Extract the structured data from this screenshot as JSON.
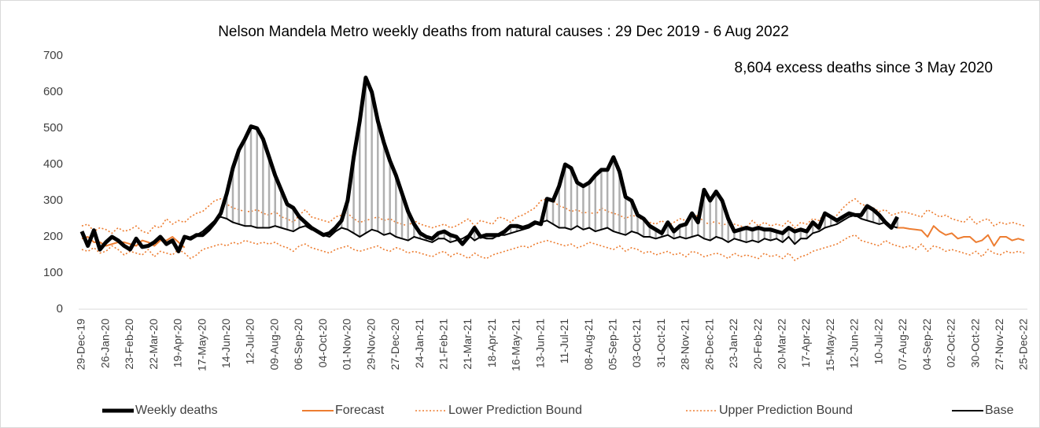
{
  "chart_data": {
    "type": "line",
    "title": "Nelson Mandela Metro weekly deaths from natural causes : 29 Dec 2019 - 6 Aug 2022",
    "annotation": "8,604 excess deaths since 3 May 2020",
    "categories": [
      "29-Dec-19",
      null,
      null,
      null,
      "26-Jan-20",
      null,
      null,
      null,
      "23-Feb-20",
      null,
      null,
      null,
      "22-Mar-20",
      null,
      null,
      null,
      "19-Apr-20",
      null,
      null,
      null,
      "17-May-20",
      null,
      null,
      null,
      "14-Jun-20",
      null,
      null,
      null,
      "12-Jul-20",
      null,
      null,
      null,
      "09-Aug-20",
      null,
      null,
      null,
      "06-Sep-20",
      null,
      null,
      null,
      "04-Oct-20",
      null,
      null,
      null,
      "01-Nov-20",
      null,
      null,
      null,
      "29-Nov-20",
      null,
      null,
      null,
      "27-Dec-20",
      null,
      null,
      null,
      "24-Jan-21",
      null,
      null,
      null,
      "21-Feb-21",
      null,
      null,
      null,
      "21-Mar-21",
      null,
      null,
      null,
      "18-Apr-21",
      null,
      null,
      null,
      "16-May-21",
      null,
      null,
      null,
      "13-Jun-21",
      null,
      null,
      null,
      "11-Jul-21",
      null,
      null,
      null,
      "08-Aug-21",
      null,
      null,
      null,
      "05-Sep-21",
      null,
      null,
      null,
      "03-Oct-21",
      null,
      null,
      null,
      "31-Oct-21",
      null,
      null,
      null,
      "28-Nov-21",
      null,
      null,
      null,
      "26-Dec-21",
      null,
      null,
      null,
      "23-Jan-22",
      null,
      null,
      null,
      "20-Feb-22",
      null,
      null,
      null,
      "20-Mar-22",
      null,
      null,
      null,
      "17-Apr-22",
      null,
      null,
      null,
      "15-May-22",
      null,
      null,
      null,
      "12-Jun-22",
      null,
      null,
      null,
      "10-Jul-22",
      null,
      null,
      null,
      "07-Aug-22",
      null,
      null,
      null,
      "04-Sep-22",
      null,
      null,
      null,
      "02-Oct-22",
      null,
      null,
      null,
      "30-Oct-22",
      null,
      null,
      null,
      "27-Nov-22",
      null,
      null,
      null,
      "25-Dec-22"
    ],
    "series": [
      {
        "name": "Weekly deaths",
        "color": "#000000",
        "line_style": "thick",
        "values": [
          215,
          175,
          218,
          165,
          185,
          200,
          190,
          175,
          165,
          195,
          172,
          175,
          185,
          200,
          180,
          190,
          160,
          200,
          195,
          205,
          205,
          220,
          240,
          265,
          320,
          390,
          440,
          470,
          505,
          500,
          470,
          420,
          370,
          330,
          290,
          280,
          255,
          240,
          225,
          215,
          205,
          210,
          225,
          245,
          300,
          420,
          520,
          640,
          600,
          520,
          460,
          410,
          370,
          320,
          270,
          235,
          210,
          200,
          195,
          210,
          215,
          205,
          200,
          180,
          200,
          225,
          200,
          205,
          205,
          205,
          215,
          230,
          230,
          225,
          230,
          240,
          235,
          305,
          300,
          340,
          400,
          390,
          350,
          340,
          350,
          370,
          385,
          385,
          420,
          380,
          310,
          300,
          260,
          250,
          230,
          220,
          210,
          240,
          215,
          230,
          235,
          265,
          240,
          330,
          300,
          325,
          300,
          250,
          215,
          220,
          225,
          220,
          225,
          220,
          220,
          215,
          210,
          225,
          215,
          220,
          215,
          240,
          225,
          265,
          255,
          245,
          255,
          265,
          260,
          260,
          285,
          275,
          260,
          240,
          225,
          255,
          null,
          null,
          null,
          null,
          null,
          null,
          null,
          null,
          null,
          null,
          null,
          null,
          null,
          null,
          null,
          null,
          null,
          null,
          null,
          null,
          null
        ]
      },
      {
        "name": "Forecast",
        "color": "#ED7D31",
        "line_style": "solid",
        "values": [
          195,
          200,
          185,
          185,
          175,
          180,
          185,
          185,
          180,
          175,
          190,
          185,
          175,
          190,
          190,
          200,
          185,
          170,
          null,
          null,
          null,
          null,
          null,
          null,
          null,
          null,
          null,
          null,
          null,
          null,
          null,
          null,
          null,
          null,
          null,
          null,
          null,
          null,
          null,
          null,
          null,
          null,
          null,
          null,
          null,
          null,
          null,
          null,
          null,
          null,
          null,
          null,
          null,
          null,
          null,
          null,
          null,
          null,
          null,
          null,
          null,
          null,
          null,
          null,
          null,
          null,
          null,
          null,
          null,
          null,
          null,
          null,
          null,
          null,
          null,
          null,
          null,
          null,
          null,
          null,
          null,
          null,
          null,
          null,
          null,
          null,
          null,
          null,
          null,
          null,
          null,
          null,
          null,
          null,
          null,
          null,
          null,
          null,
          null,
          null,
          null,
          null,
          null,
          null,
          null,
          null,
          null,
          null,
          null,
          null,
          null,
          null,
          null,
          null,
          null,
          null,
          null,
          null,
          null,
          null,
          null,
          null,
          null,
          null,
          null,
          null,
          null,
          null,
          null,
          null,
          null,
          null,
          null,
          null,
          null,
          225,
          225,
          222,
          220,
          218,
          200,
          230,
          215,
          205,
          210,
          195,
          200,
          200,
          185,
          190,
          205,
          175,
          200,
          200,
          190,
          195,
          190
        ]
      },
      {
        "name": "Lower Prediction Bound",
        "color": "#ED7D31",
        "line_style": "dotted",
        "values": [
          165,
          160,
          170,
          155,
          160,
          175,
          165,
          150,
          160,
          155,
          150,
          165,
          145,
          160,
          155,
          150,
          165,
          155,
          140,
          150,
          165,
          170,
          175,
          180,
          175,
          185,
          180,
          190,
          185,
          180,
          185,
          180,
          185,
          175,
          170,
          160,
          175,
          180,
          170,
          165,
          160,
          155,
          165,
          170,
          175,
          165,
          160,
          165,
          170,
          175,
          165,
          160,
          170,
          165,
          155,
          160,
          155,
          150,
          145,
          155,
          160,
          145,
          155,
          150,
          140,
          155,
          145,
          140,
          150,
          155,
          160,
          165,
          170,
          175,
          170,
          180,
          185,
          190,
          185,
          180,
          175,
          180,
          170,
          175,
          185,
          180,
          175,
          170,
          165,
          175,
          160,
          170,
          165,
          155,
          160,
          150,
          155,
          160,
          150,
          155,
          145,
          160,
          155,
          145,
          150,
          155,
          150,
          140,
          155,
          145,
          150,
          145,
          140,
          155,
          145,
          150,
          140,
          155,
          135,
          145,
          150,
          160,
          165,
          170,
          175,
          180,
          190,
          200,
          205,
          190,
          185,
          180,
          175,
          190,
          180,
          175,
          170,
          175,
          165,
          180,
          160,
          175,
          170,
          160,
          165,
          160,
          155,
          150,
          160,
          145,
          165,
          155,
          150,
          160,
          155,
          160,
          155
        ]
      },
      {
        "name": "Upper Prediction Bound",
        "color": "#ED7D31",
        "line_style": "dotted",
        "values": [
          230,
          235,
          215,
          225,
          220,
          210,
          225,
          215,
          220,
          230,
          215,
          210,
          230,
          225,
          250,
          235,
          245,
          240,
          255,
          265,
          270,
          285,
          300,
          305,
          290,
          280,
          275,
          270,
          270,
          275,
          265,
          260,
          270,
          255,
          250,
          240,
          260,
          275,
          255,
          250,
          245,
          240,
          255,
          260,
          265,
          250,
          240,
          245,
          250,
          255,
          245,
          250,
          240,
          235,
          230,
          245,
          235,
          230,
          225,
          230,
          235,
          225,
          230,
          240,
          250,
          230,
          245,
          240,
          235,
          255,
          250,
          240,
          255,
          260,
          270,
          280,
          300,
          305,
          300,
          285,
          280,
          270,
          275,
          265,
          270,
          260,
          280,
          270,
          265,
          260,
          250,
          260,
          255,
          245,
          240,
          235,
          245,
          230,
          240,
          250,
          245,
          250,
          260,
          240,
          235,
          245,
          230,
          240,
          235,
          230,
          225,
          245,
          230,
          240,
          230,
          235,
          230,
          245,
          225,
          240,
          235,
          250,
          245,
          265,
          250,
          260,
          280,
          295,
          305,
          290,
          285,
          280,
          270,
          275,
          260,
          265,
          270,
          265,
          260,
          255,
          275,
          265,
          255,
          260,
          250,
          245,
          240,
          255,
          235,
          245,
          250,
          230,
          240,
          235,
          240,
          235,
          230
        ]
      },
      {
        "name": "Base",
        "color": "#000000",
        "line_style": "solid",
        "values": [
          null,
          null,
          null,
          null,
          null,
          null,
          null,
          null,
          null,
          null,
          null,
          null,
          null,
          null,
          null,
          null,
          null,
          null,
          200,
          205,
          215,
          230,
          245,
          255,
          250,
          240,
          235,
          230,
          230,
          225,
          225,
          225,
          230,
          225,
          220,
          215,
          225,
          230,
          220,
          215,
          205,
          200,
          215,
          225,
          220,
          210,
          200,
          210,
          220,
          215,
          205,
          210,
          200,
          195,
          190,
          200,
          195,
          190,
          185,
          195,
          195,
          185,
          190,
          195,
          205,
          190,
          200,
          195,
          195,
          205,
          205,
          210,
          215,
          220,
          225,
          235,
          240,
          245,
          235,
          225,
          225,
          220,
          230,
          220,
          225,
          215,
          220,
          225,
          215,
          210,
          205,
          215,
          210,
          200,
          200,
          195,
          200,
          205,
          195,
          200,
          195,
          200,
          205,
          195,
          190,
          200,
          195,
          185,
          195,
          190,
          185,
          190,
          185,
          195,
          190,
          195,
          185,
          200,
          180,
          195,
          195,
          210,
          215,
          225,
          230,
          235,
          245,
          255,
          260,
          250,
          245,
          240,
          235,
          240,
          230,
          225,
          null,
          null,
          null,
          null,
          null,
          null,
          null,
          null,
          null,
          null,
          null,
          null,
          null,
          null,
          null,
          null,
          null,
          null,
          null,
          null,
          null
        ]
      }
    ],
    "ylim": [
      0,
      700
    ],
    "yticks": [
      0,
      100,
      200,
      300,
      400,
      500,
      600,
      700
    ],
    "excess_hatch_color": "#b0b0b0",
    "legend": "bottom"
  }
}
